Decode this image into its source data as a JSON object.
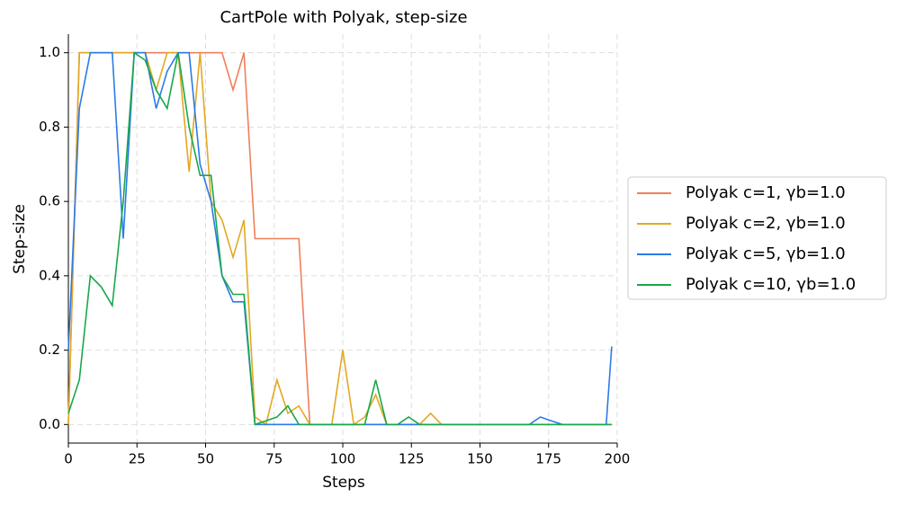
{
  "chart_data": {
    "type": "line",
    "title": "CartPole with Polyak, step-size",
    "x_label": "Steps",
    "y_label": "Step-size",
    "x": [
      0,
      4,
      8,
      12,
      16,
      20,
      24,
      28,
      32,
      36,
      40,
      44,
      48,
      52,
      56,
      60,
      64,
      68,
      72,
      76,
      80,
      84,
      88,
      92,
      96,
      100,
      104,
      108,
      112,
      116,
      120,
      124,
      128,
      132,
      136,
      140,
      144,
      148,
      152,
      156,
      160,
      164,
      168,
      172,
      176,
      180,
      184,
      188,
      192,
      196,
      198
    ],
    "series": [
      {
        "name": "Polyak c=1, γb=1.0",
        "color": "#f07f5a",
        "values": [
          0,
          1,
          1,
          1,
          1,
          1,
          1,
          1,
          1,
          1,
          1,
          1,
          1,
          1,
          1,
          0.9,
          1,
          0.5,
          0.5,
          0.5,
          0.5,
          0.5,
          0,
          0,
          0,
          0,
          0,
          0,
          0,
          0,
          0,
          0,
          0,
          0,
          0,
          0,
          0,
          0,
          0,
          0,
          0,
          0,
          0,
          0,
          0,
          0,
          0,
          0,
          0,
          0,
          0
        ]
      },
      {
        "name": "Polyak c=2, γb=1.0",
        "color": "#e3a822",
        "values": [
          0,
          1,
          1,
          1,
          1,
          1,
          1,
          1,
          0.9,
          1,
          1,
          0.68,
          1,
          0.6,
          0.55,
          0.45,
          0.55,
          0.02,
          0,
          0.12,
          0.03,
          0.05,
          0,
          0,
          0,
          0.2,
          0,
          0.02,
          0.08,
          0,
          0,
          0,
          0,
          0.03,
          0,
          0,
          0,
          0,
          0,
          0,
          0,
          0,
          0,
          0,
          0,
          0,
          0,
          0,
          0,
          0,
          0
        ]
      },
      {
        "name": "Polyak c=5, γb=1.0",
        "color": "#2b7be8",
        "values": [
          0.2,
          0.85,
          1,
          1,
          1,
          0.5,
          1,
          1,
          0.85,
          0.95,
          1,
          1,
          0.7,
          0.6,
          0.4,
          0.33,
          0.33,
          0,
          0,
          0,
          0,
          0,
          0,
          0,
          0,
          0,
          0,
          0,
          0,
          0,
          0,
          0,
          0,
          0,
          0,
          0,
          0,
          0,
          0,
          0,
          0,
          0,
          0,
          0.02,
          0.01,
          0,
          0,
          0,
          0,
          0,
          0.21
        ]
      },
      {
        "name": "Polyak c=10, γb=1.0",
        "color": "#18a84a",
        "values": [
          0.03,
          0.12,
          0.4,
          0.37,
          0.32,
          0.6,
          1,
          0.98,
          0.9,
          0.85,
          1,
          0.8,
          0.67,
          0.67,
          0.4,
          0.35,
          0.35,
          0,
          0.01,
          0.02,
          0.05,
          0,
          0,
          0,
          0,
          0,
          0,
          0,
          0.12,
          0,
          0,
          0.02,
          0,
          0,
          0,
          0,
          0,
          0,
          0,
          0,
          0,
          0,
          0,
          0,
          0,
          0,
          0,
          0,
          0,
          0,
          0
        ]
      }
    ],
    "xlim": [
      0,
      200
    ],
    "xticks": [
      0,
      25,
      50,
      75,
      100,
      125,
      150,
      175,
      200
    ],
    "ylim": [
      -0.05,
      1.05
    ],
    "yticks": [
      {
        "value": 0,
        "label": "0.0"
      },
      {
        "value": 0.2,
        "label": "0.2"
      },
      {
        "value": 0.4,
        "label": "0.4"
      },
      {
        "value": 0.6,
        "label": "0.6"
      },
      {
        "value": 0.8,
        "label": "0.8"
      },
      {
        "value": 1,
        "label": "1.0"
      }
    ],
    "grid": true,
    "legend": "right"
  }
}
